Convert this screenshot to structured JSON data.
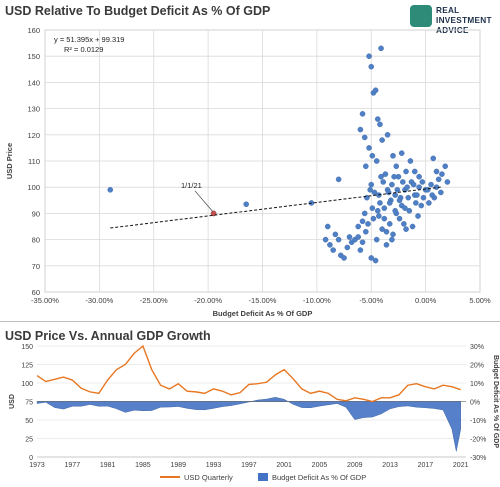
{
  "top_panel": {
    "title": "USD Relative To Budget Deficit As % Of GDP",
    "logo_lines": [
      "REAL",
      "INVESTMENT",
      "ADVICE"
    ],
    "equation": "y = 51.395x + 99.319",
    "r_squared": "R² = 0.0129",
    "annotation": "1/1/21"
  },
  "bottom_panel": {
    "title": "USD Price Vs. Annual GDP Growth"
  },
  "colors": {
    "point": "#4f7fc4",
    "highlight_point": "#c0504d",
    "trend": "#111111",
    "usd_line": "#e87722",
    "deficit_area": "#4472c4",
    "grid": "#d9d9d9",
    "axis_text": "#404040"
  },
  "chart_data": [
    {
      "type": "scatter",
      "xlabel": "Budget Deficit As % Of GDP",
      "ylabel": "USD Price",
      "xlim": [
        -0.35,
        0.05
      ],
      "ylim": [
        60,
        160
      ],
      "xticks": [
        -0.35,
        -0.3,
        -0.25,
        -0.2,
        -0.15,
        -0.1,
        -0.05,
        0.0,
        0.05
      ],
      "xtick_labels": [
        "-35.00%",
        "-30.00%",
        "-25.00%",
        "-20.00%",
        "-15.00%",
        "-10.00%",
        "-5.00%",
        "0.00%",
        "5.00%"
      ],
      "yticks": [
        60,
        70,
        80,
        90,
        100,
        110,
        120,
        130,
        140,
        150,
        160
      ],
      "grid": true,
      "trendline": {
        "slope": 51.395,
        "intercept": 99.319,
        "x_range": [
          -0.29,
          0.015
        ],
        "style": "dashed"
      },
      "points": [
        [
          -0.29,
          99
        ],
        [
          -0.195,
          90
        ],
        [
          -0.165,
          93.5
        ],
        [
          -0.105,
          94
        ],
        [
          -0.08,
          103
        ],
        [
          -0.09,
          85
        ],
        [
          -0.092,
          80
        ],
        [
          -0.088,
          78
        ],
        [
          -0.085,
          76
        ],
        [
          -0.083,
          82
        ],
        [
          -0.08,
          80
        ],
        [
          -0.078,
          74
        ],
        [
          -0.075,
          73
        ],
        [
          -0.072,
          77
        ],
        [
          -0.07,
          81
        ],
        [
          -0.068,
          79
        ],
        [
          -0.065,
          80
        ],
        [
          -0.062,
          81
        ],
        [
          -0.06,
          76
        ],
        [
          -0.058,
          79
        ],
        [
          -0.055,
          83
        ],
        [
          -0.053,
          86
        ],
        [
          -0.05,
          73
        ],
        [
          -0.048,
          88
        ],
        [
          -0.046,
          72
        ],
        [
          -0.045,
          80
        ],
        [
          -0.043,
          89
        ],
        [
          -0.042,
          94
        ],
        [
          -0.04,
          84
        ],
        [
          -0.038,
          92
        ],
        [
          -0.036,
          78
        ],
        [
          -0.035,
          99
        ],
        [
          -0.033,
          86
        ],
        [
          -0.032,
          95
        ],
        [
          -0.03,
          82
        ],
        [
          -0.028,
          97
        ],
        [
          -0.027,
          90
        ],
        [
          -0.025,
          104
        ],
        [
          -0.024,
          88
        ],
        [
          -0.022,
          93
        ],
        [
          -0.02,
          86
        ],
        [
          -0.019,
          99
        ],
        [
          -0.018,
          84
        ],
        [
          -0.016,
          96
        ],
        [
          -0.015,
          91
        ],
        [
          -0.013,
          102
        ],
        [
          -0.012,
          85
        ],
        [
          -0.01,
          97
        ],
        [
          -0.009,
          94
        ],
        [
          -0.007,
          89
        ],
        [
          -0.006,
          100
        ],
        [
          -0.004,
          93
        ],
        [
          -0.002,
          96
        ],
        [
          0.0,
          99
        ],
        [
          0.003,
          94
        ],
        [
          0.005,
          101
        ],
        [
          0.008,
          96
        ],
        [
          0.01,
          100
        ],
        [
          0.012,
          103
        ],
        [
          0.014,
          98
        ],
        [
          -0.052,
          150
        ],
        [
          -0.05,
          146
        ],
        [
          -0.048,
          136
        ],
        [
          -0.046,
          137
        ],
        [
          -0.044,
          126
        ],
        [
          -0.042,
          124
        ],
        [
          -0.04,
          118
        ],
        [
          -0.052,
          115
        ],
        [
          -0.049,
          112
        ],
        [
          -0.055,
          108
        ],
        [
          -0.045,
          110
        ],
        [
          -0.041,
          104
        ],
        [
          -0.035,
          120
        ],
        [
          -0.03,
          112
        ],
        [
          -0.027,
          108
        ],
        [
          -0.022,
          113
        ],
        [
          -0.018,
          106
        ],
        [
          -0.014,
          110
        ],
        [
          -0.01,
          106
        ],
        [
          -0.006,
          104
        ],
        [
          -0.058,
          128
        ],
        [
          -0.06,
          122
        ],
        [
          -0.056,
          119
        ],
        [
          -0.05,
          101
        ],
        [
          -0.047,
          98
        ],
        [
          -0.043,
          97
        ],
        [
          -0.039,
          102
        ],
        [
          -0.037,
          105
        ],
        [
          -0.034,
          98
        ],
        [
          -0.031,
          101
        ],
        [
          -0.029,
          104
        ],
        [
          -0.026,
          99
        ],
        [
          -0.023,
          96
        ],
        [
          -0.021,
          102
        ],
        [
          -0.017,
          100
        ],
        [
          -0.011,
          101
        ],
        [
          -0.008,
          97
        ],
        [
          -0.003,
          102
        ],
        [
          0.002,
          99
        ],
        [
          0.006,
          97
        ],
        [
          -0.041,
          153
        ],
        [
          -0.033,
          94
        ],
        [
          -0.028,
          91
        ],
        [
          -0.024,
          95
        ],
        [
          -0.019,
          92
        ],
        [
          -0.044,
          91
        ],
        [
          -0.038,
          88
        ],
        [
          -0.049,
          92
        ],
        [
          -0.054,
          96
        ],
        [
          -0.051,
          99
        ],
        [
          -0.058,
          87
        ],
        [
          -0.062,
          85
        ],
        [
          -0.056,
          90
        ],
        [
          -0.036,
          83
        ],
        [
          -0.031,
          80
        ],
        [
          0.007,
          111
        ],
        [
          0.01,
          106
        ],
        [
          0.015,
          105
        ],
        [
          0.018,
          108
        ],
        [
          0.02,
          102
        ]
      ],
      "highlight_point": [
        -0.195,
        90
      ]
    },
    {
      "type": "line",
      "x_ticks": [
        1973,
        1977,
        1981,
        1985,
        1989,
        1993,
        1997,
        2001,
        2005,
        2009,
        2013,
        2017,
        2021
      ],
      "ylabel": "USD",
      "ylabel_right": "Budget Deficit As % Of GDP",
      "ylim": [
        0,
        150
      ],
      "yticks": [
        0,
        25,
        50,
        75,
        100,
        125,
        150
      ],
      "ylim_right": [
        -30,
        30
      ],
      "yticks_right": [
        -30,
        -20,
        -10,
        0,
        10,
        20,
        30
      ],
      "ytick_labels_right": [
        "-30%",
        "-20%",
        "-10%",
        "0%",
        "10%",
        "20%",
        "30%"
      ],
      "grid": true,
      "legend_position": "bottom-center",
      "series": [
        {
          "name": "USD Quarterly",
          "axis": "left",
          "x": [
            1973,
            1974,
            1975,
            1976,
            1977,
            1978,
            1979,
            1980,
            1981,
            1982,
            1983,
            1984,
            1985,
            1986,
            1987,
            1988,
            1989,
            1990,
            1991,
            1992,
            1993,
            1994,
            1995,
            1996,
            1997,
            1998,
            1999,
            2000,
            2001,
            2002,
            2003,
            2004,
            2005,
            2006,
            2007,
            2008,
            2009,
            2010,
            2011,
            2012,
            2013,
            2014,
            2015,
            2016,
            2017,
            2018,
            2019,
            2020,
            2021
          ],
          "values": [
            110,
            102,
            105,
            108,
            104,
            93,
            88,
            86,
            104,
            118,
            125,
            140,
            150,
            118,
            97,
            92,
            99,
            89,
            88,
            86,
            92,
            89,
            84,
            87,
            98,
            99,
            101,
            111,
            118,
            106,
            92,
            86,
            89,
            86,
            78,
            76,
            80,
            78,
            75,
            80,
            80,
            84,
            97,
            99,
            95,
            92,
            97,
            95,
            91
          ]
        },
        {
          "name": "Budget Deficit As % Of GDP",
          "axis": "right",
          "x": [
            1973,
            1974,
            1975,
            1976,
            1977,
            1978,
            1979,
            1980,
            1981,
            1982,
            1983,
            1984,
            1985,
            1986,
            1987,
            1988,
            1989,
            1990,
            1991,
            1992,
            1993,
            1994,
            1995,
            1996,
            1997,
            1998,
            1999,
            2000,
            2001,
            2002,
            2003,
            2004,
            2005,
            2006,
            2007,
            2008,
            2009,
            2010,
            2011,
            2012,
            2013,
            2014,
            2015,
            2016,
            2017,
            2018,
            2019,
            2020,
            2020.5,
            2021
          ],
          "values": [
            -1.1,
            -0.4,
            -3.3,
            -4.1,
            -2.6,
            -2.6,
            -1.6,
            -2.6,
            -2.5,
            -3.9,
            -5.9,
            -4.7,
            -5.0,
            -4.9,
            -3.1,
            -3.0,
            -2.7,
            -3.7,
            -4.4,
            -4.5,
            -3.7,
            -2.8,
            -2.2,
            -1.3,
            -0.3,
            0.8,
            1.3,
            2.3,
            1.2,
            -1.5,
            -3.3,
            -3.4,
            -2.5,
            -1.8,
            -1.1,
            -3.1,
            -9.8,
            -8.7,
            -8.4,
            -6.7,
            -4.0,
            -2.8,
            -2.4,
            -3.1,
            -3.4,
            -3.8,
            -4.6,
            -14.9,
            -27,
            -15
          ]
        }
      ]
    }
  ]
}
